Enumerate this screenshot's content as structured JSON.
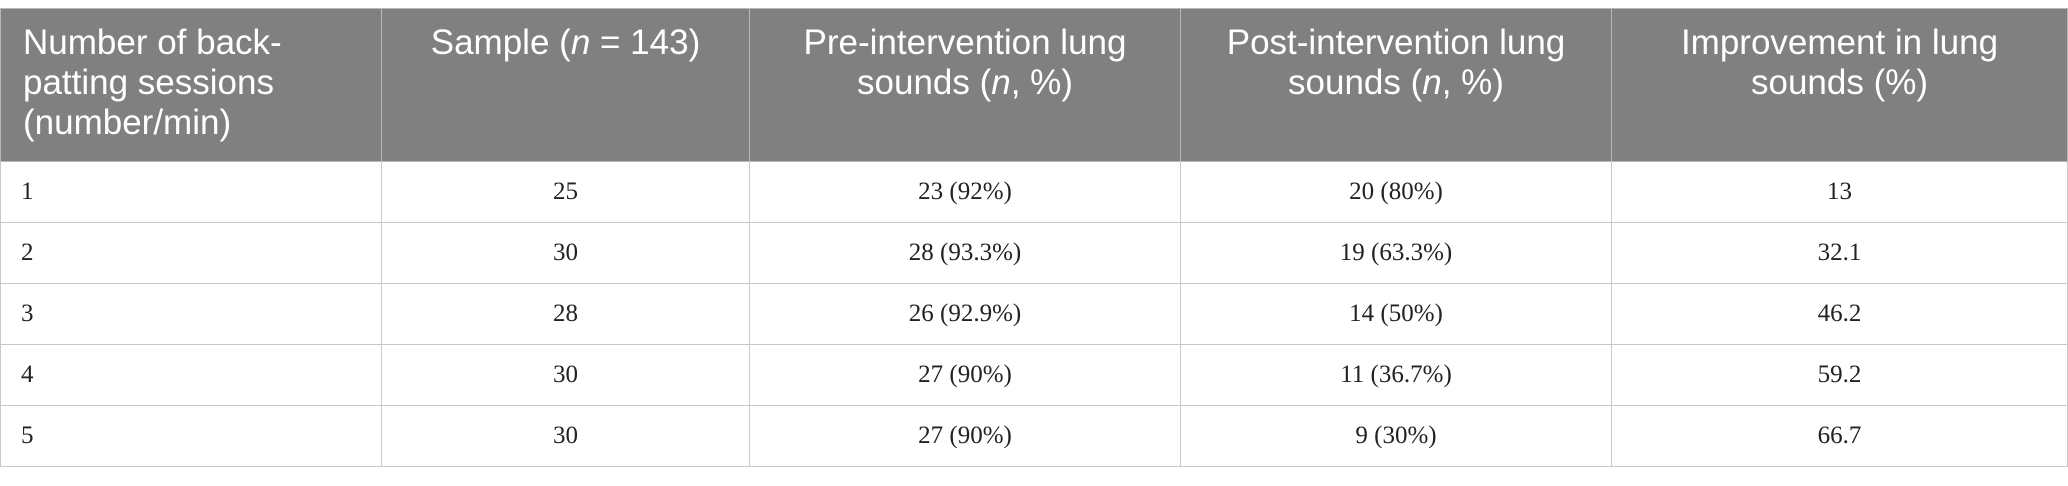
{
  "table": {
    "headers": [
      "Number of back-patting sessions (number/min)",
      "Sample (n = 143)",
      "Pre-intervention lung sounds (n, %)",
      "Post-intervention lung sounds (n, %)",
      "Improvement in lung sounds (%)"
    ],
    "header_parts": {
      "col1": "Number of back-patting sessions (number/min)",
      "col2_pre": "Sample (",
      "col2_n": "n",
      "col2_post": " = 143)",
      "col3_pre": "Pre-intervention lung sounds (",
      "col3_n": "n",
      "col3_post": ", %)",
      "col4_pre": "Post-intervention lung sounds (",
      "col4_n": "n",
      "col4_post": ", %)",
      "col5": "Improvement in lung sounds (%)"
    },
    "rows": [
      [
        "1",
        "25",
        "23 (92%)",
        "20 (80%)",
        "13"
      ],
      [
        "2",
        "30",
        "28 (93.3%)",
        "19 (63.3%)",
        "32.1"
      ],
      [
        "3",
        "28",
        "26 (92.9%)",
        "14 (50%)",
        "46.2"
      ],
      [
        "4",
        "30",
        "27 (90%)",
        "11 (36.7%)",
        "59.2"
      ],
      [
        "5",
        "30",
        "27 (90%)",
        "9 (30%)",
        "66.7"
      ]
    ]
  },
  "colors": {
    "header_background": "#808080",
    "header_text": "#ffffff",
    "border": "#c8c8c8"
  }
}
